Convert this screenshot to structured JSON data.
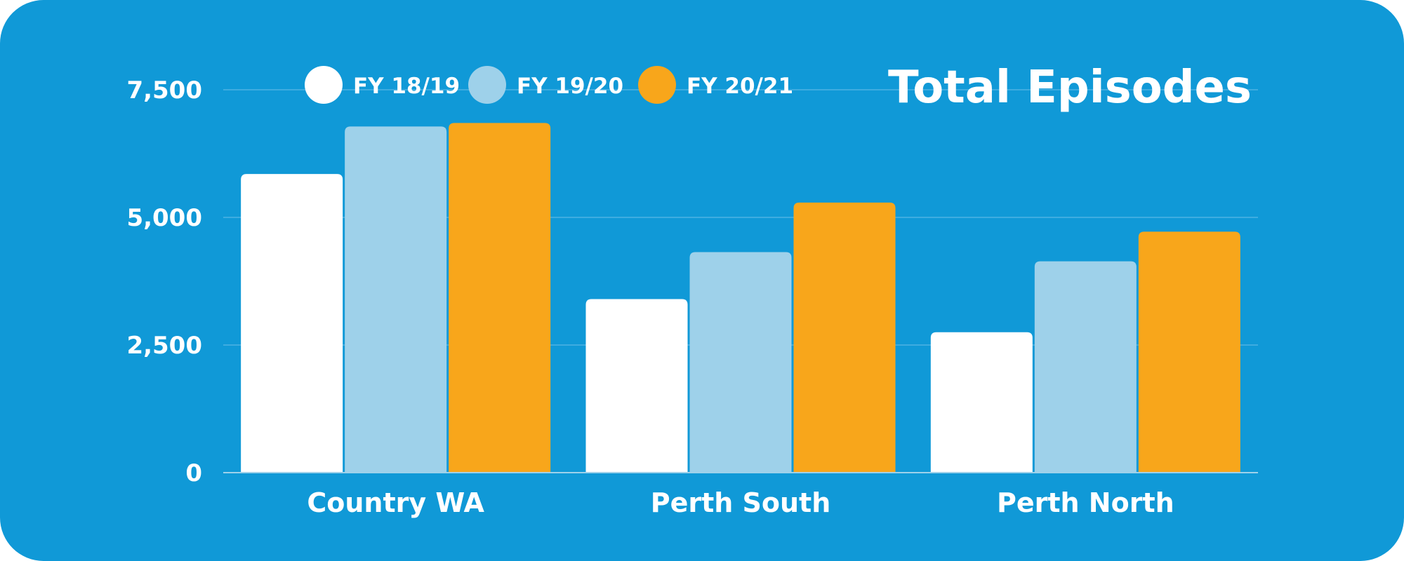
{
  "chart_data": {
    "type": "bar",
    "title": "Total Episodes",
    "categories": [
      "Country WA",
      "Perth South",
      "Perth North"
    ],
    "series": [
      {
        "name": "FY 18/19",
        "color": "#ffffff",
        "values": [
          5850,
          3400,
          2750
        ]
      },
      {
        "name": "FY 19/20",
        "color": "#9ed1ea",
        "values": [
          6780,
          4320,
          4140
        ]
      },
      {
        "name": "FY 20/21",
        "color": "#f8a61b",
        "values": [
          6850,
          5290,
          4720
        ]
      }
    ],
    "y_ticks": [
      {
        "value": 0,
        "label": "0"
      },
      {
        "value": 2500,
        "label": "2,500"
      },
      {
        "value": 5000,
        "label": "5,000"
      },
      {
        "value": 7500,
        "label": "7,500"
      }
    ],
    "ylim": [
      0,
      7500
    ],
    "grid": true,
    "legend_position": "top-left",
    "background_color": "#1099d7",
    "gridline_color": "#4db3e3"
  }
}
